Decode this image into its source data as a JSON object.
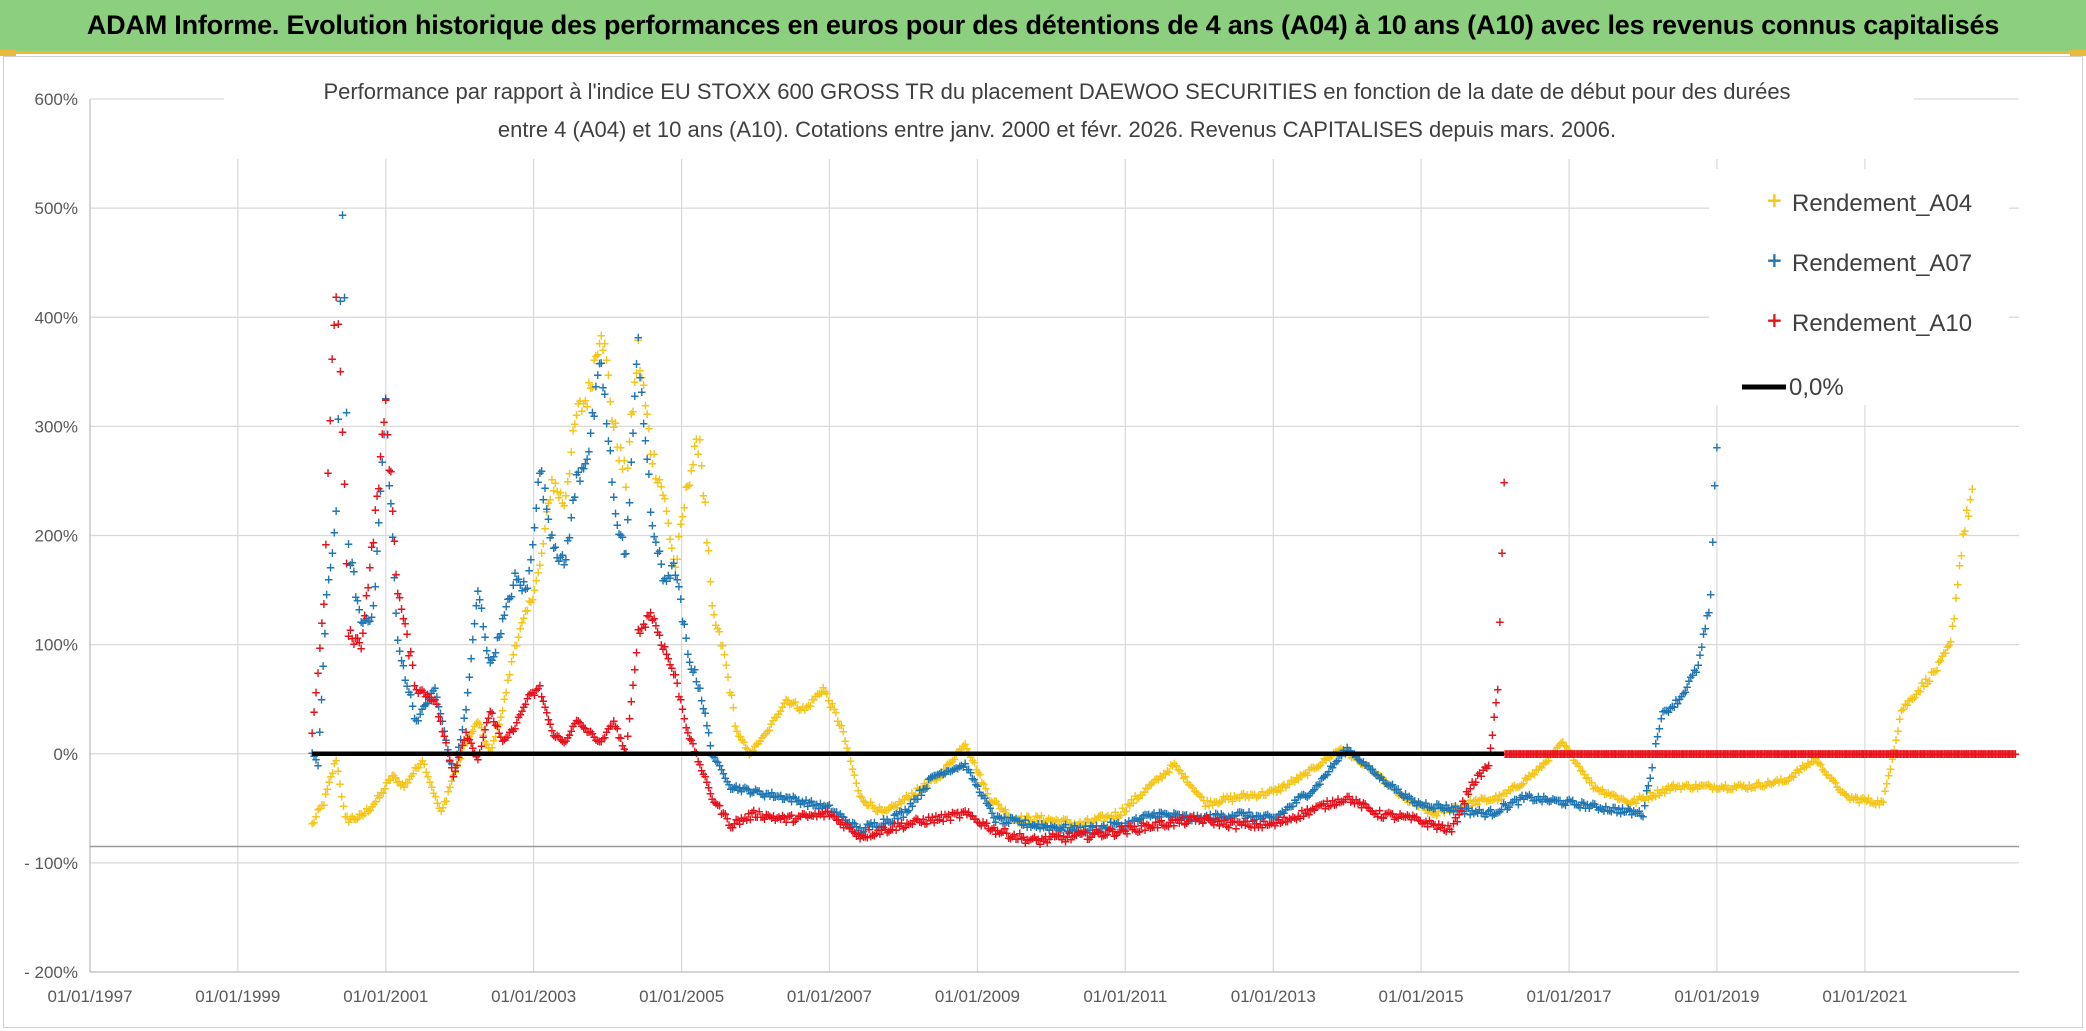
{
  "header": {
    "title": "ADAM Informe. Evolution historique des performances en euros pour des détentions de 4 ans (A04) à 10 ans (A10) avec les revenus connus capitalisés"
  },
  "colors": {
    "header_bg": "#8ccf7e",
    "a04": "#f5c518",
    "a07": "#1f77b4",
    "a10": "#e8121c",
    "zero_line": "#000000",
    "grid": "#d9d9d9"
  },
  "chart_data": {
    "type": "scatter",
    "title_lines": [
      "Performance par rapport à l'indice EU STOXX 600 GROSS TR  du placement DAEWOO SECURITIES en fonction de la date de début pour des durées",
      "entre 4 (A04) et 10 ans (A10). Cotations entre janv. 2000 et févr. 2026. Revenus CAPITALISES depuis mars. 2006."
    ],
    "xlabel": "",
    "ylabel": "",
    "x_ticks": [
      "01/01/1997",
      "01/01/1999",
      "01/01/2001",
      "01/01/2003",
      "01/01/2005",
      "01/01/2007",
      "01/01/2009",
      "01/01/2011",
      "01/01/2013",
      "01/01/2015",
      "01/01/2017",
      "01/01/2019",
      "01/01/2021"
    ],
    "x_range": [
      "1997-01-01",
      "2023-02-01"
    ],
    "y_ticks": [
      "600%",
      "500%",
      "400%",
      "300%",
      "200%",
      "100%",
      "0%",
      "- 100%",
      "- 200%"
    ],
    "ylim": [
      -200,
      600
    ],
    "grid": true,
    "legend_position": "top-right",
    "zero_line_label": "0,0%",
    "series": [
      {
        "name": "Rendement_A04",
        "color": "#f5c518",
        "points": [
          [
            "2000-01-03",
            -65
          ],
          [
            "2000-03-01",
            -45
          ],
          [
            "2000-05-01",
            -5
          ],
          [
            "2000-06-15",
            -60
          ],
          [
            "2000-09-01",
            -58
          ],
          [
            "2000-12-01",
            -40
          ],
          [
            "2001-02-01",
            -20
          ],
          [
            "2001-04-01",
            -30
          ],
          [
            "2001-07-01",
            -5
          ],
          [
            "2001-10-01",
            -55
          ],
          [
            "2001-12-01",
            -20
          ],
          [
            "2002-02-01",
            10
          ],
          [
            "2002-04-01",
            30
          ],
          [
            "2002-06-01",
            0
          ],
          [
            "2002-08-01",
            40
          ],
          [
            "2002-10-01",
            100
          ],
          [
            "2002-12-01",
            130
          ],
          [
            "2003-02-01",
            170
          ],
          [
            "2003-04-01",
            250
          ],
          [
            "2003-06-01",
            230
          ],
          [
            "2003-08-01",
            310
          ],
          [
            "2003-10-01",
            330
          ],
          [
            "2003-12-01",
            395
          ],
          [
            "2004-02-01",
            300
          ],
          [
            "2004-04-01",
            250
          ],
          [
            "2004-06-01",
            370
          ],
          [
            "2004-08-01",
            280
          ],
          [
            "2004-10-01",
            240
          ],
          [
            "2004-12-01",
            170
          ],
          [
            "2005-02-01",
            250
          ],
          [
            "2005-04-01",
            290
          ],
          [
            "2005-06-01",
            130
          ],
          [
            "2005-08-01",
            90
          ],
          [
            "2005-10-01",
            20
          ],
          [
            "2005-12-01",
            0
          ],
          [
            "2006-03-01",
            20
          ],
          [
            "2006-06-01",
            50
          ],
          [
            "2006-09-01",
            40
          ],
          [
            "2006-12-01",
            60
          ],
          [
            "2007-03-01",
            25
          ],
          [
            "2007-06-01",
            -40
          ],
          [
            "2007-10-01",
            -55
          ],
          [
            "2008-03-01",
            -35
          ],
          [
            "2008-07-01",
            -20
          ],
          [
            "2008-11-01",
            10
          ],
          [
            "2009-03-01",
            -40
          ],
          [
            "2009-07-01",
            -60
          ],
          [
            "2009-12-01",
            -60
          ],
          [
            "2010-06-01",
            -65
          ],
          [
            "2010-12-01",
            -55
          ],
          [
            "2011-05-01",
            -30
          ],
          [
            "2011-09-01",
            -10
          ],
          [
            "2012-02-01",
            -45
          ],
          [
            "2012-07-01",
            -40
          ],
          [
            "2013-01-01",
            -35
          ],
          [
            "2013-06-01",
            -20
          ],
          [
            "2013-12-01",
            5
          ],
          [
            "2014-05-01",
            -15
          ],
          [
            "2014-10-01",
            -40
          ],
          [
            "2015-03-01",
            -55
          ],
          [
            "2015-09-01",
            -45
          ],
          [
            "2016-02-01",
            -40
          ],
          [
            "2016-08-01",
            -15
          ],
          [
            "2016-12-01",
            10
          ],
          [
            "2017-05-01",
            -30
          ],
          [
            "2017-11-01",
            -45
          ],
          [
            "2018-06-01",
            -30
          ],
          [
            "2018-12-01",
            -30
          ],
          [
            "2019-06-01",
            -30
          ],
          [
            "2019-12-01",
            -25
          ],
          [
            "2020-05-01",
            -5
          ],
          [
            "2020-10-01",
            -40
          ],
          [
            "2021-04-01",
            -45
          ],
          [
            "2021-07-01",
            40
          ],
          [
            "2021-10-01",
            60
          ],
          [
            "2022-01-01",
            80
          ],
          [
            "2022-03-01",
            100
          ],
          [
            "2022-05-01",
            200
          ],
          [
            "2022-06-15",
            240
          ]
        ]
      },
      {
        "name": "Rendement_A07",
        "color": "#1f77b4",
        "points": [
          [
            "2000-01-03",
            0
          ],
          [
            "2000-02-01",
            -10
          ],
          [
            "2000-03-15",
            140
          ],
          [
            "2000-05-01",
            220
          ],
          [
            "2000-06-01",
            505
          ],
          [
            "2000-07-01",
            190
          ],
          [
            "2000-09-01",
            120
          ],
          [
            "2000-11-01",
            130
          ],
          [
            "2001-01-01",
            320
          ],
          [
            "2001-03-01",
            100
          ],
          [
            "2001-06-01",
            30
          ],
          [
            "2001-09-01",
            60
          ],
          [
            "2001-12-01",
            -20
          ],
          [
            "2002-02-01",
            40
          ],
          [
            "2002-04-01",
            150
          ],
          [
            "2002-06-01",
            80
          ],
          [
            "2002-08-01",
            120
          ],
          [
            "2002-10-01",
            160
          ],
          [
            "2002-12-01",
            150
          ],
          [
            "2003-02-01",
            260
          ],
          [
            "2003-04-01",
            200
          ],
          [
            "2003-06-01",
            170
          ],
          [
            "2003-08-01",
            250
          ],
          [
            "2003-10-01",
            280
          ],
          [
            "2003-12-01",
            360
          ],
          [
            "2004-02-01",
            230
          ],
          [
            "2004-04-01",
            180
          ],
          [
            "2004-06-01",
            380
          ],
          [
            "2004-08-01",
            220
          ],
          [
            "2004-10-01",
            160
          ],
          [
            "2004-12-01",
            170
          ],
          [
            "2005-02-01",
            90
          ],
          [
            "2005-04-01",
            60
          ],
          [
            "2005-06-01",
            0
          ],
          [
            "2005-09-01",
            -30
          ],
          [
            "2006-01-01",
            -35
          ],
          [
            "2006-06-01",
            -40
          ],
          [
            "2007-01-01",
            -50
          ],
          [
            "2007-06-01",
            -70
          ],
          [
            "2008-01-01",
            -55
          ],
          [
            "2008-06-01",
            -20
          ],
          [
            "2008-11-01",
            -10
          ],
          [
            "2009-04-01",
            -60
          ],
          [
            "2009-10-01",
            -65
          ],
          [
            "2010-06-01",
            -70
          ],
          [
            "2011-01-01",
            -65
          ],
          [
            "2011-06-01",
            -55
          ],
          [
            "2012-01-01",
            -60
          ],
          [
            "2012-07-01",
            -55
          ],
          [
            "2013-01-01",
            -60
          ],
          [
            "2013-08-01",
            -30
          ],
          [
            "2014-01-01",
            5
          ],
          [
            "2014-06-01",
            -20
          ],
          [
            "2014-12-01",
            -45
          ],
          [
            "2015-06-01",
            -50
          ],
          [
            "2015-12-01",
            -55
          ],
          [
            "2016-06-01",
            -40
          ],
          [
            "2017-01-01",
            -45
          ],
          [
            "2017-07-01",
            -50
          ],
          [
            "2018-01-01",
            -55
          ],
          [
            "2018-04-01",
            35
          ],
          [
            "2018-07-01",
            50
          ],
          [
            "2018-10-01",
            80
          ],
          [
            "2018-12-01",
            140
          ],
          [
            "2019-01-01",
            290
          ]
        ]
      },
      {
        "name": "Rendement_A10",
        "color": "#e8121c",
        "points": [
          [
            "2000-01-03",
            20
          ],
          [
            "2000-02-01",
            75
          ],
          [
            "2000-03-01",
            140
          ],
          [
            "2000-04-01",
            310
          ],
          [
            "2000-05-01",
            430
          ],
          [
            "2000-06-01",
            300
          ],
          [
            "2000-07-01",
            110
          ],
          [
            "2000-09-01",
            100
          ],
          [
            "2000-11-01",
            200
          ],
          [
            "2001-01-01",
            320
          ],
          [
            "2001-03-01",
            150
          ],
          [
            "2001-06-01",
            60
          ],
          [
            "2001-09-01",
            50
          ],
          [
            "2001-12-01",
            -20
          ],
          [
            "2002-02-01",
            20
          ],
          [
            "2002-04-01",
            -5
          ],
          [
            "2002-06-01",
            40
          ],
          [
            "2002-08-01",
            10
          ],
          [
            "2002-10-01",
            25
          ],
          [
            "2002-12-01",
            50
          ],
          [
            "2003-02-01",
            60
          ],
          [
            "2003-04-01",
            20
          ],
          [
            "2003-06-01",
            10
          ],
          [
            "2003-08-01",
            30
          ],
          [
            "2003-10-01",
            20
          ],
          [
            "2003-12-01",
            10
          ],
          [
            "2004-02-01",
            30
          ],
          [
            "2004-04-01",
            0
          ],
          [
            "2004-06-01",
            110
          ],
          [
            "2004-08-01",
            130
          ],
          [
            "2004-10-01",
            100
          ],
          [
            "2004-12-01",
            70
          ],
          [
            "2005-02-01",
            20
          ],
          [
            "2005-04-01",
            -10
          ],
          [
            "2005-06-01",
            -40
          ],
          [
            "2005-09-01",
            -65
          ],
          [
            "2006-01-01",
            -55
          ],
          [
            "2006-06-01",
            -60
          ],
          [
            "2007-01-01",
            -55
          ],
          [
            "2007-06-01",
            -75
          ],
          [
            "2008-01-01",
            -65
          ],
          [
            "2008-06-01",
            -60
          ],
          [
            "2008-11-01",
            -55
          ],
          [
            "2009-04-01",
            -70
          ],
          [
            "2009-10-01",
            -80
          ],
          [
            "2010-06-01",
            -75
          ],
          [
            "2011-01-01",
            -70
          ],
          [
            "2011-06-01",
            -65
          ],
          [
            "2012-01-01",
            -60
          ],
          [
            "2012-07-01",
            -65
          ],
          [
            "2013-01-01",
            -65
          ],
          [
            "2013-08-01",
            -50
          ],
          [
            "2014-01-01",
            -40
          ],
          [
            "2014-06-01",
            -55
          ],
          [
            "2014-12-01",
            -60
          ],
          [
            "2015-06-01",
            -70
          ],
          [
            "2015-09-01",
            -30
          ],
          [
            "2015-12-01",
            -10
          ],
          [
            "2016-01-15",
            60
          ],
          [
            "2016-02-15",
            250
          ]
        ]
      },
      {
        "name": "0,0%",
        "color": "#000000",
        "type": "line",
        "points": [
          [
            "2000-01-03",
            0
          ],
          [
            "2016-02-15",
            0
          ]
        ]
      }
    ]
  }
}
